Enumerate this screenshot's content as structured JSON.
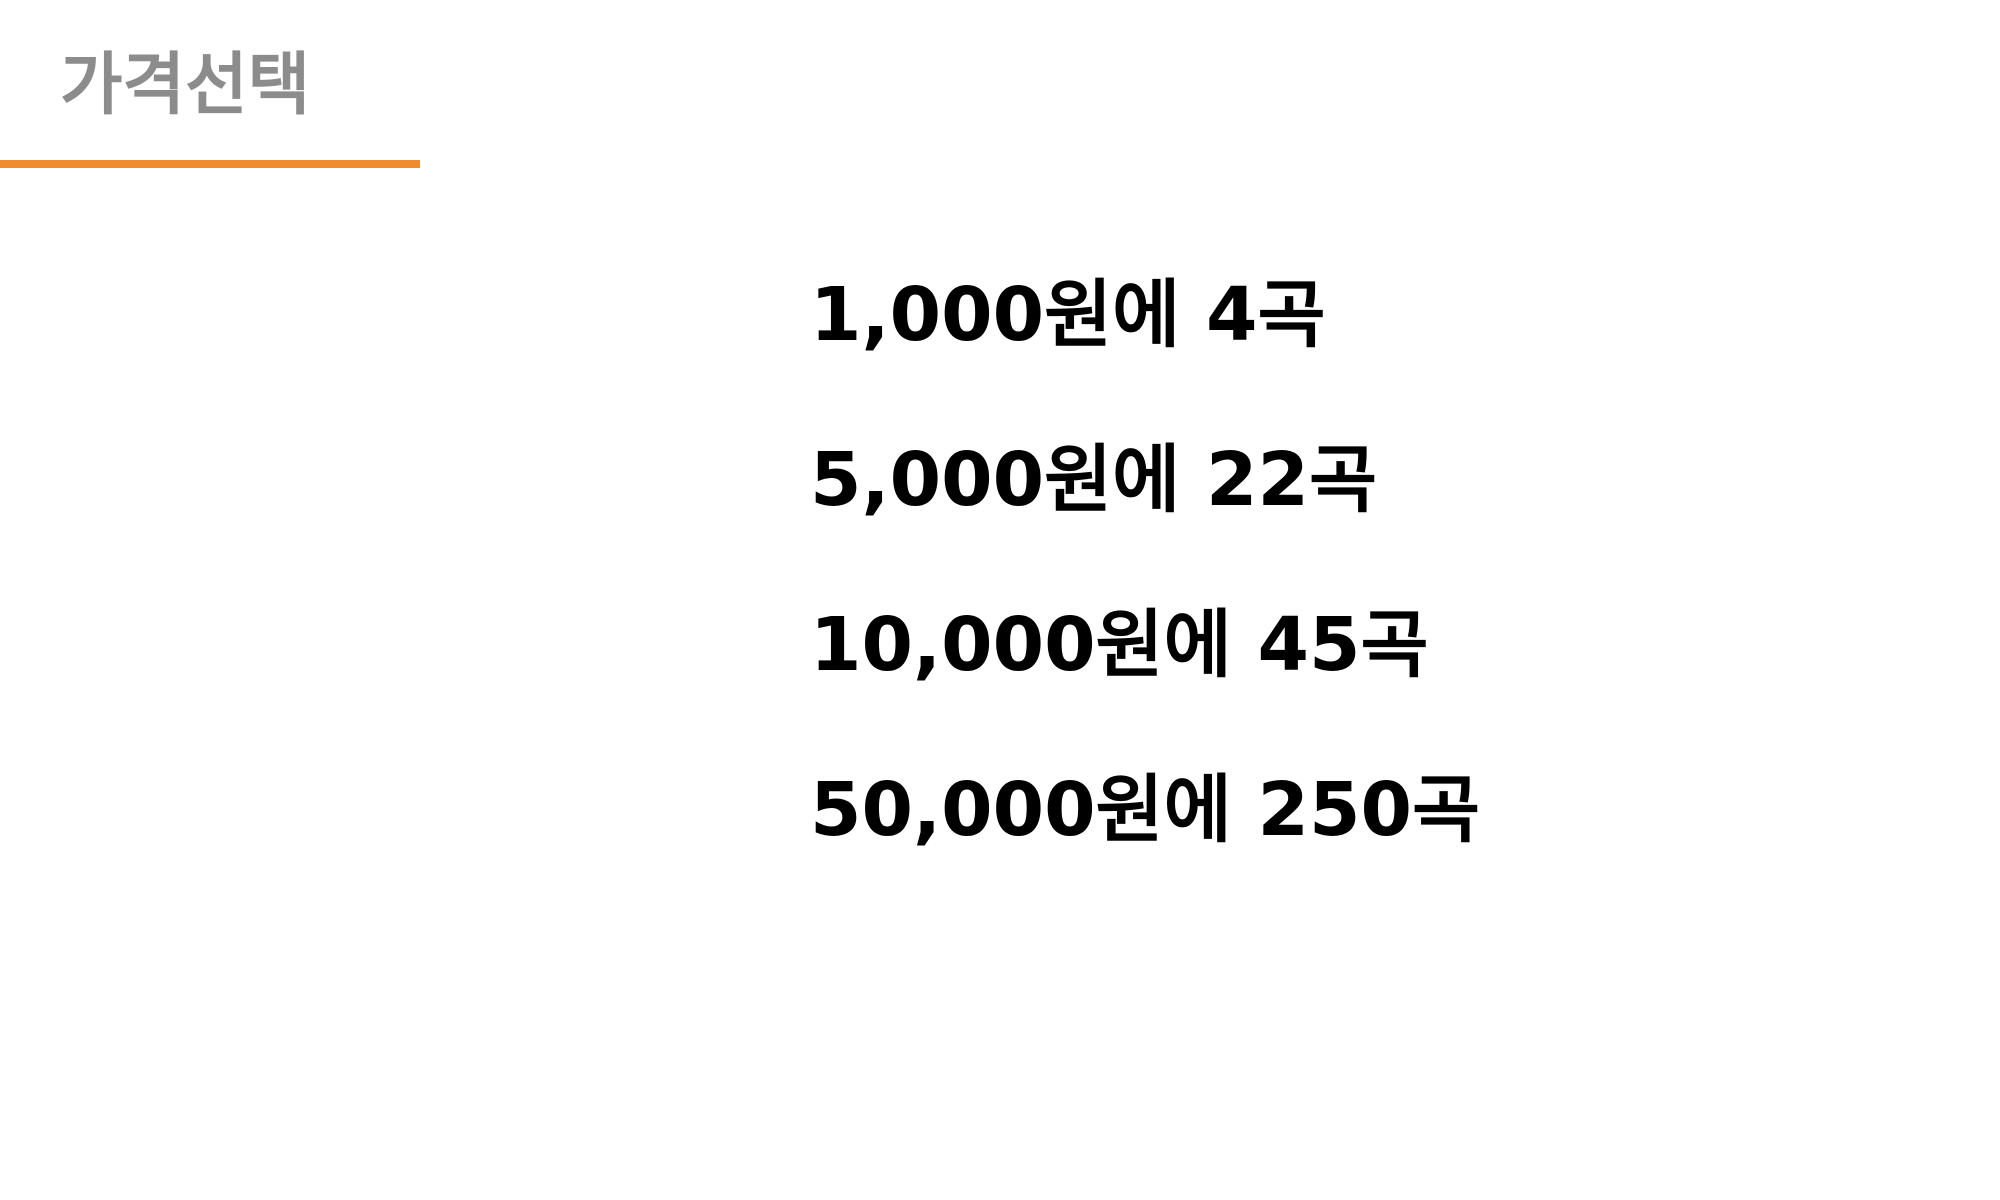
{
  "header": {
    "title": "가격선택",
    "accent_color": "#f08c2e",
    "title_color": "#8c8c8c"
  },
  "price_options": [
    {
      "label": "1,000원에 4곡"
    },
    {
      "label": "5,000원에 22곡"
    },
    {
      "label": "10,000원에 45곡"
    },
    {
      "label": "50,000원에 250곡"
    }
  ]
}
